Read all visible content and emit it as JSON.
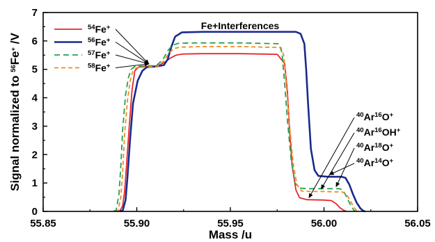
{
  "chart_data": {
    "type": "line",
    "xlabel": "Mass /u",
    "ylabel_parts": {
      "pre": "Signal normalized to ",
      "sup": "56",
      "post": "Fe",
      "sup2": "+",
      "tail": " /V"
    },
    "xlim": [
      55.85,
      56.05
    ],
    "ylim": [
      0,
      7
    ],
    "xticks": [
      "55.85",
      "55.90",
      "55.95",
      "56.00",
      "56.05"
    ],
    "xtick_values": [
      55.85,
      55.9,
      55.95,
      56.0,
      56.05
    ],
    "yticks": [
      "0",
      "1",
      "2",
      "3",
      "4",
      "5",
      "6",
      "7"
    ],
    "ytick_values": [
      0,
      1,
      2,
      3,
      4,
      5,
      6,
      7
    ],
    "legend_position": "top-left",
    "series": [
      {
        "name": "54Fe+",
        "sup": "54",
        "label": "Fe",
        "charge": "+",
        "color": "#e8262d",
        "dash": "solid",
        "x": [
          55.889,
          55.891,
          55.8925,
          55.8935,
          55.8945,
          55.896,
          55.8975,
          55.899,
          55.901,
          55.9055,
          55.911,
          55.915,
          55.918,
          55.921,
          55.9245,
          55.935,
          55.955,
          55.975,
          55.979,
          55.9805,
          55.9815,
          55.983,
          55.985,
          55.987,
          55.991,
          56.0,
          56.004,
          56.0065,
          56.0085,
          56.0105,
          56.012
        ],
        "y": [
          0,
          0.02,
          0.2,
          0.7,
          1.6,
          3.0,
          4.3,
          4.95,
          5.08,
          5.1,
          5.12,
          5.25,
          5.4,
          5.5,
          5.54,
          5.55,
          5.55,
          5.53,
          5.2,
          4.2,
          3.0,
          1.6,
          0.75,
          0.48,
          0.41,
          0.4,
          0.38,
          0.27,
          0.13,
          0.04,
          0
        ]
      },
      {
        "name": "56Fe+",
        "sup": "56",
        "label": "Fe",
        "charge": "+",
        "color": "#1a2a8c",
        "dash": "solid",
        "x": [
          55.891,
          55.8925,
          55.894,
          55.895,
          55.8965,
          55.898,
          55.9005,
          55.903,
          55.9055,
          55.9105,
          55.9145,
          55.9165,
          55.9185,
          55.9205,
          55.924,
          55.935,
          55.96,
          55.985,
          55.9875,
          55.9895,
          55.9905,
          55.9915,
          55.993,
          55.995,
          55.997,
          56.002,
          56.0095,
          56.0115,
          56.0135,
          56.0155,
          56.0175,
          56.0195,
          56.021,
          56.022
        ],
        "y": [
          0,
          0.03,
          0.4,
          1.2,
          2.6,
          3.8,
          4.6,
          4.95,
          5.08,
          5.1,
          5.15,
          5.35,
          5.8,
          6.15,
          6.3,
          6.32,
          6.32,
          6.32,
          6.25,
          5.9,
          5.0,
          3.8,
          2.2,
          1.45,
          1.25,
          1.22,
          1.22,
          1.18,
          0.95,
          0.6,
          0.3,
          0.1,
          0.02,
          0
        ]
      },
      {
        "name": "57Fe+",
        "sup": "57",
        "label": "Fe",
        "charge": "+",
        "color": "#23a050",
        "dash": "8,5",
        "x": [
          55.8875,
          55.889,
          55.8905,
          55.8915,
          55.8925,
          55.894,
          55.8955,
          55.897,
          55.899,
          55.904,
          55.9105,
          55.914,
          55.9165,
          55.919,
          55.9225,
          55.935,
          55.955,
          55.976,
          55.9775,
          55.979,
          55.9805,
          55.9825,
          55.9845,
          55.987,
          55.991,
          56.0,
          56.0085,
          56.0105,
          56.0125,
          56.0145,
          56.016,
          56.017
        ],
        "y": [
          0,
          0.05,
          0.6,
          1.6,
          2.9,
          4.1,
          4.7,
          5.0,
          5.1,
          5.12,
          5.13,
          5.35,
          5.65,
          5.85,
          5.92,
          5.93,
          5.93,
          5.9,
          5.6,
          4.5,
          3.2,
          1.8,
          1.0,
          0.82,
          0.8,
          0.8,
          0.8,
          0.72,
          0.45,
          0.18,
          0.04,
          0
        ]
      },
      {
        "name": "58Fe+",
        "sup": "58",
        "label": "Fe",
        "charge": "+",
        "color": "#f08a1e",
        "dash": "6,4",
        "x": [
          55.8885,
          55.89,
          55.8915,
          55.8925,
          55.8935,
          55.895,
          55.8965,
          55.898,
          55.9,
          55.905,
          55.911,
          55.9145,
          55.917,
          55.9195,
          55.923,
          55.935,
          55.955,
          55.977,
          55.9785,
          55.98,
          55.9815,
          55.9835,
          55.9855,
          55.988,
          55.992,
          56.0,
          56.01,
          56.012,
          56.014,
          56.016,
          56.0175,
          56.0185
        ],
        "y": [
          0,
          0.04,
          0.5,
          1.4,
          2.7,
          3.9,
          4.6,
          4.95,
          5.06,
          5.08,
          5.1,
          5.3,
          5.55,
          5.72,
          5.78,
          5.8,
          5.8,
          5.77,
          5.5,
          4.4,
          3.1,
          1.7,
          0.95,
          0.72,
          0.7,
          0.7,
          0.68,
          0.6,
          0.38,
          0.15,
          0.03,
          0
        ]
      }
    ],
    "annotations": {
      "top_label": "Fe+Interferences",
      "interferences": [
        {
          "parts": [
            "40",
            "Ar",
            "16",
            "O",
            "+"
          ],
          "pointer_x": 55.992,
          "pointer_y": 0.41
        },
        {
          "parts": [
            "40",
            "Ar",
            "16",
            "OH",
            "+"
          ],
          "pointer_x": 55.9985,
          "pointer_y": 0.72
        },
        {
          "parts": [
            "40",
            "Ar",
            "18",
            "O",
            "+"
          ],
          "pointer_x": 56.0065,
          "pointer_y": 0.8
        },
        {
          "parts": [
            "40",
            "Ar",
            "14",
            "O",
            "+"
          ],
          "pointer_x": 56.003,
          "pointer_y": 1.22
        }
      ],
      "legend_pointer_target": {
        "x": 55.906,
        "y": 5.12
      }
    }
  }
}
